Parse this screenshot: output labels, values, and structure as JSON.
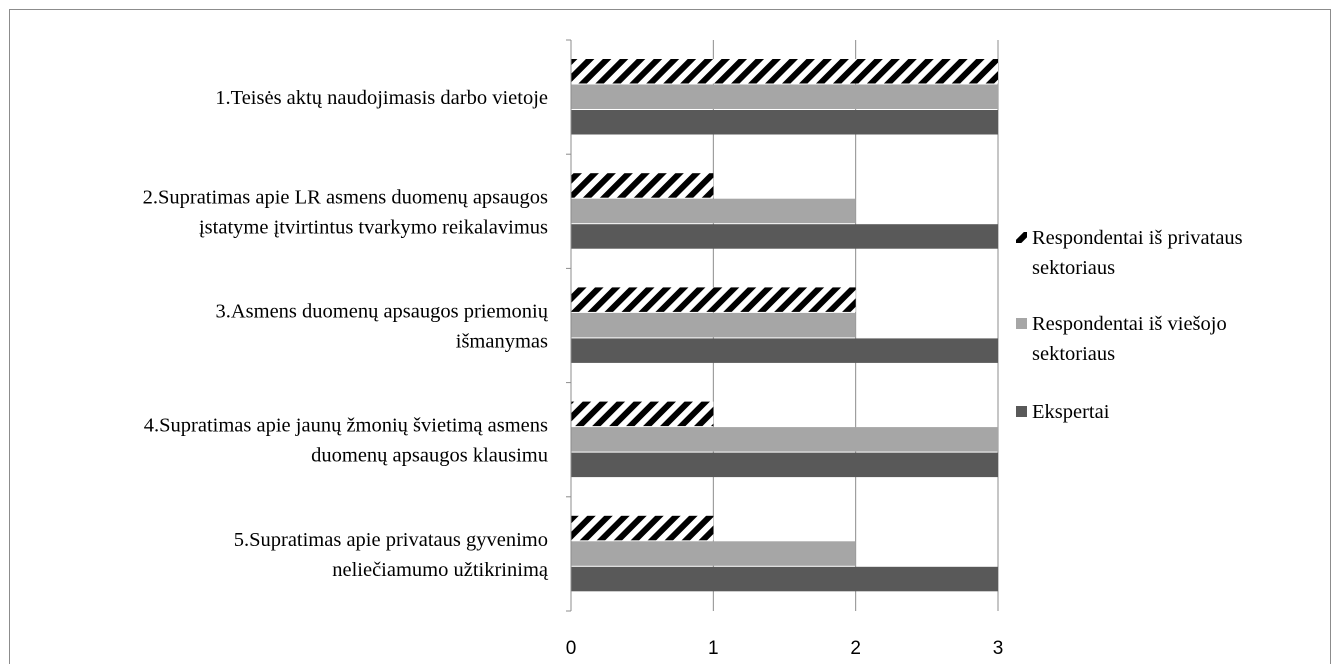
{
  "chart_data": {
    "type": "bar",
    "orientation": "horizontal",
    "categories": [
      "1.Teisės aktų naudojimasis darbo vietoje",
      "2.Supratimas apie LR asmens duomenų apsaugos įstatyme įtvirtintus tvarkymo reikalavimus",
      "3.Asmens duomenų apsaugos priemonių išmanymas",
      "4.Supratimas apie jaunų žmonių švietimą asmens duomenų apsaugos klausimu",
      "5.Supratimas apie privataus gyvenimo neliečiamumo užtikrinimą"
    ],
    "category_label_lines": [
      [
        "1.Teisės aktų naudojimasis darbo vietoje"
      ],
      [
        "2.Supratimas apie LR asmens duomenų apsaugos",
        "įstatyme įtvirtintus tvarkymo reikalavimus"
      ],
      [
        "3.Asmens duomenų apsaugos priemonių",
        "išmanymas"
      ],
      [
        "4.Supratimas apie jaunų žmonių švietimą asmens",
        "duomenų apsaugos klausimu"
      ],
      [
        "5.Supratimas apie privataus gyvenimo",
        "neliečiamumo užtikrinimą"
      ]
    ],
    "series": [
      {
        "name": "Respondentai iš privataus sektoriaus",
        "legend_lines": [
          "Respondentai iš privataus",
          "sektoriaus"
        ],
        "values": [
          3,
          1,
          2,
          1,
          1
        ],
        "style": "hatched",
        "color": "#000000"
      },
      {
        "name": "Respondentai iš viešojo sektoriaus",
        "legend_lines": [
          "Respondentai iš viešojo",
          "sektoriaus"
        ],
        "values": [
          3,
          2,
          2,
          3,
          2
        ],
        "style": "solid",
        "color": "#a6a6a6"
      },
      {
        "name": "Ekspertai",
        "legend_lines": [
          "Ekspertai"
        ],
        "values": [
          3,
          3,
          3,
          3,
          3
        ],
        "style": "solid",
        "color": "#595959"
      }
    ],
    "xlim": [
      0,
      3
    ],
    "xticks": [
      "0",
      "1",
      "2",
      "3"
    ],
    "grid": true,
    "legend_position": "right",
    "title": "",
    "xlabel": "",
    "ylabel": ""
  }
}
